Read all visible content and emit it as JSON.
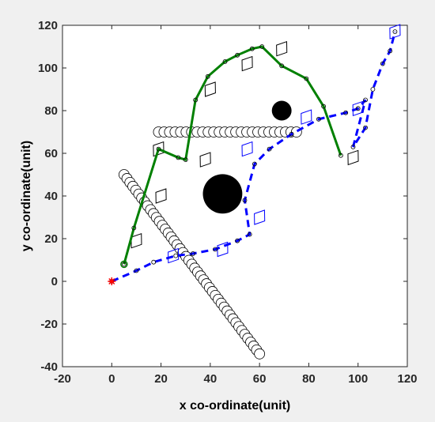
{
  "chart_data": {
    "type": "scatter",
    "title": "",
    "xlabel": "x co-ordinate(unit)",
    "ylabel": "y co-ordinate(unit)",
    "xlim": [
      -20,
      120
    ],
    "ylim": [
      -40,
      120
    ],
    "xticks": [
      -20,
      0,
      20,
      40,
      60,
      80,
      100,
      120
    ],
    "yticks": [
      -40,
      -20,
      0,
      20,
      40,
      60,
      80,
      100,
      120
    ],
    "grid": false,
    "legend": "none",
    "colors": {
      "green_path": "#008000",
      "blue_path": "#0000ff",
      "start_marker": "#ff0000",
      "obstacle": "#000000"
    },
    "start": {
      "x": 0,
      "y": 0
    },
    "series": [
      {
        "style": "solid-green-line-with-circles",
        "x": [
          5,
          9,
          19,
          27,
          30,
          34,
          39,
          46,
          51,
          57,
          61,
          69,
          79,
          86,
          93
        ],
        "y": [
          8,
          25,
          62,
          58,
          57,
          85,
          96,
          103,
          106,
          109,
          110,
          101,
          95,
          82,
          59
        ]
      },
      {
        "style": "dashed-blue-line-with-circles",
        "x": [
          0,
          10,
          17,
          26,
          33,
          42,
          51,
          56,
          54,
          58,
          64,
          73,
          84,
          95,
          100,
          103,
          98,
          103,
          106,
          110,
          113,
          115
        ],
        "y": [
          0,
          5,
          9,
          12,
          13,
          15,
          19,
          22,
          38,
          55,
          62,
          69,
          76,
          79,
          81,
          85,
          63,
          72,
          90,
          102,
          108,
          117
        ]
      }
    ],
    "obstacles": {
      "filled_circles": [
        {
          "x": 45,
          "y": 41,
          "r": 8
        },
        {
          "x": 69,
          "y": 80,
          "r": 4
        }
      ],
      "circle_chain_horizontal": {
        "from": [
          19,
          70
        ],
        "to": [
          75,
          70
        ]
      },
      "circle_chain_diagonal": {
        "from": [
          5,
          50
        ],
        "to": [
          60,
          -34
        ]
      },
      "diamonds_black": [
        {
          "x": 10,
          "y": 19
        },
        {
          "x": 20,
          "y": 40
        },
        {
          "x": 19,
          "y": 62
        },
        {
          "x": 38,
          "y": 57
        },
        {
          "x": 40,
          "y": 90
        },
        {
          "x": 55,
          "y": 102
        },
        {
          "x": 69,
          "y": 109
        },
        {
          "x": 98,
          "y": 58
        }
      ],
      "diamonds_blue": [
        {
          "x": 25,
          "y": 12
        },
        {
          "x": 45,
          "y": 15
        },
        {
          "x": 55,
          "y": 62
        },
        {
          "x": 60,
          "y": 30
        },
        {
          "x": 79,
          "y": 77
        },
        {
          "x": 100,
          "y": 81
        },
        {
          "x": 115,
          "y": 117
        }
      ]
    }
  }
}
